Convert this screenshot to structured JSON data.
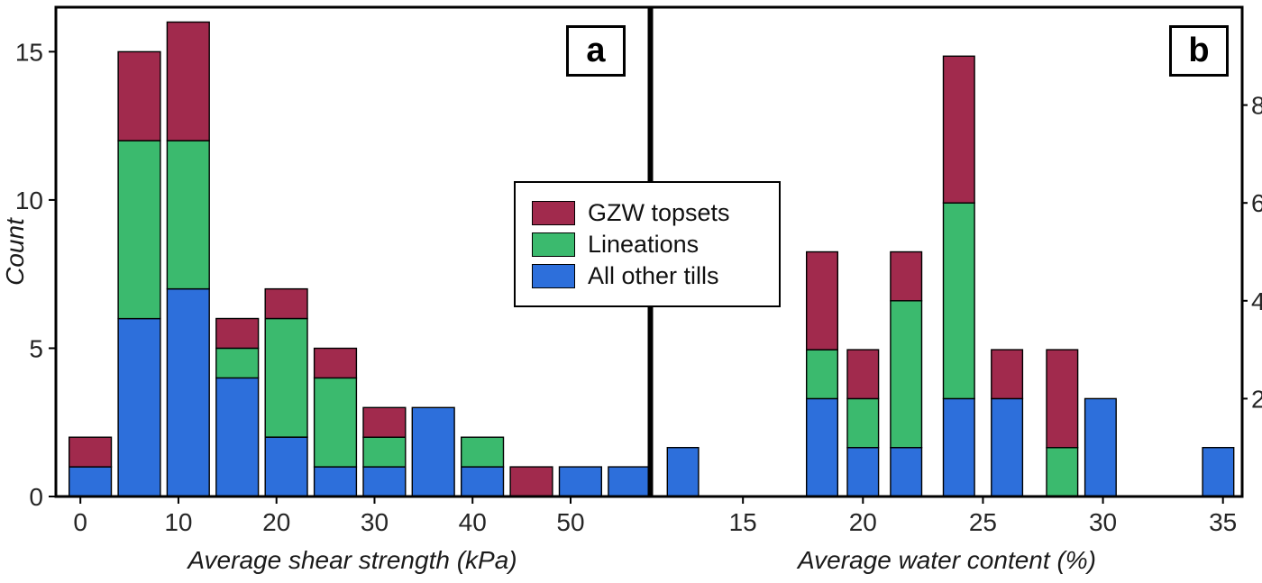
{
  "figure": {
    "background": "#ffffff",
    "panel_a_label": "a",
    "panel_b_label": "b"
  },
  "legend": {
    "position": "upper right of panel a, overlapping the panel a/b boundary",
    "items": [
      {
        "label": "GZW topsets",
        "color": "#a12a4d"
      },
      {
        "label": "Lineations",
        "color": "#3bba6e"
      },
      {
        "label": "All other tills",
        "color": "#2d6fdb"
      }
    ]
  },
  "chart_data": [
    {
      "type": "bar",
      "stacked": true,
      "panel": "a",
      "title": "",
      "xlabel": "Average shear strength (kPa)",
      "ylabel": "Count",
      "xlim": [
        -2.5,
        58
      ],
      "ylim": [
        0,
        16.5
      ],
      "xticks": [
        0,
        10,
        20,
        30,
        40,
        50
      ],
      "yticks": [
        0,
        5,
        10,
        15
      ],
      "yaxis_side": "left",
      "grid": false,
      "bar_width": 4.3,
      "x": [
        1,
        6,
        11,
        16,
        21,
        26,
        31,
        36,
        41,
        46,
        51,
        56
      ],
      "series": [
        {
          "name": "All other tills",
          "color": "#2d6fdb",
          "values": [
            1,
            6,
            7,
            4,
            2,
            1,
            1,
            3,
            1,
            0,
            1,
            1
          ]
        },
        {
          "name": "Lineations",
          "color": "#3bba6e",
          "values": [
            0,
            6,
            5,
            1,
            4,
            3,
            1,
            0,
            1,
            0,
            0,
            0
          ]
        },
        {
          "name": "GZW topsets",
          "color": "#a12a4d",
          "values": [
            1,
            3,
            4,
            1,
            1,
            1,
            1,
            0,
            0,
            1,
            0,
            0
          ]
        }
      ]
    },
    {
      "type": "bar",
      "stacked": true,
      "panel": "b",
      "title": "",
      "xlabel": "Average water content (%)",
      "ylabel": "",
      "xlim": [
        11.2,
        35.8
      ],
      "ylim": [
        0,
        10
      ],
      "xticks": [
        15,
        20,
        25,
        30,
        35
      ],
      "yticks": [
        2,
        4,
        6,
        8
      ],
      "yaxis_side": "right",
      "grid": false,
      "bar_width": 1.3,
      "x": [
        12.5,
        18.3,
        20.0,
        21.8,
        24.0,
        26.0,
        28.3,
        29.9,
        34.8
      ],
      "series": [
        {
          "name": "All other tills",
          "color": "#2d6fdb",
          "values": [
            1,
            2,
            1,
            1,
            2,
            2,
            0,
            2,
            1
          ]
        },
        {
          "name": "Lineations",
          "color": "#3bba6e",
          "values": [
            0,
            1,
            1,
            3,
            4,
            0,
            1,
            0,
            0
          ]
        },
        {
          "name": "GZW topsets",
          "color": "#a12a4d",
          "values": [
            0,
            2,
            1,
            1,
            3,
            1,
            2,
            0,
            0
          ]
        }
      ]
    }
  ]
}
